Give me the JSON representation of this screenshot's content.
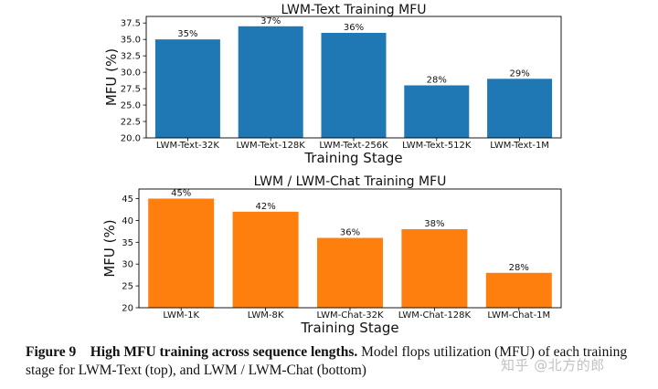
{
  "chart_data": [
    {
      "type": "bar",
      "title": "LWM-Text Training MFU",
      "xlabel": "Training Stage",
      "ylabel": "MFU (%)",
      "categories": [
        "LWM-Text-32K",
        "LWM-Text-128K",
        "LWM-Text-256K",
        "LWM-Text-512K",
        "LWM-Text-1M"
      ],
      "values": [
        35,
        37,
        36,
        28,
        29
      ],
      "data_labels": [
        "35%",
        "37%",
        "36%",
        "28%",
        "29%"
      ],
      "ylim": [
        20,
        38.5
      ],
      "yticks": [
        20.0,
        22.5,
        25.0,
        27.5,
        30.0,
        32.5,
        35.0,
        37.5
      ],
      "ytick_labels": [
        "20.0",
        "22.5",
        "25.0",
        "27.5",
        "30.0",
        "32.5",
        "35.0",
        "37.5"
      ],
      "color": "#1f77b4",
      "grid": false,
      "legend": "none"
    },
    {
      "type": "bar",
      "title": "LWM / LWM-Chat Training MFU",
      "xlabel": "Training Stage",
      "ylabel": "MFU (%)",
      "categories": [
        "LWM-1K",
        "LWM-8K",
        "LWM-Chat-32K",
        "LWM-Chat-128K",
        "LWM-Chat-1M"
      ],
      "values": [
        45,
        42,
        36,
        38,
        28
      ],
      "data_labels": [
        "45%",
        "42%",
        "36%",
        "38%",
        "28%"
      ],
      "ylim": [
        20,
        47.2
      ],
      "yticks": [
        20,
        25,
        30,
        35,
        40,
        45
      ],
      "ytick_labels": [
        "20",
        "25",
        "30",
        "35",
        "40",
        "45"
      ],
      "color": "#ff7f0e",
      "grid": false,
      "legend": "none"
    }
  ],
  "caption": {
    "label": "Figure 9",
    "title": "High MFU training across sequence lengths.",
    "text": " Model flops utilization (MFU) of each training stage for LWM-Text (top), and LWM / LWM-Chat (bottom)"
  },
  "watermark": "知乎 @北方的郎"
}
